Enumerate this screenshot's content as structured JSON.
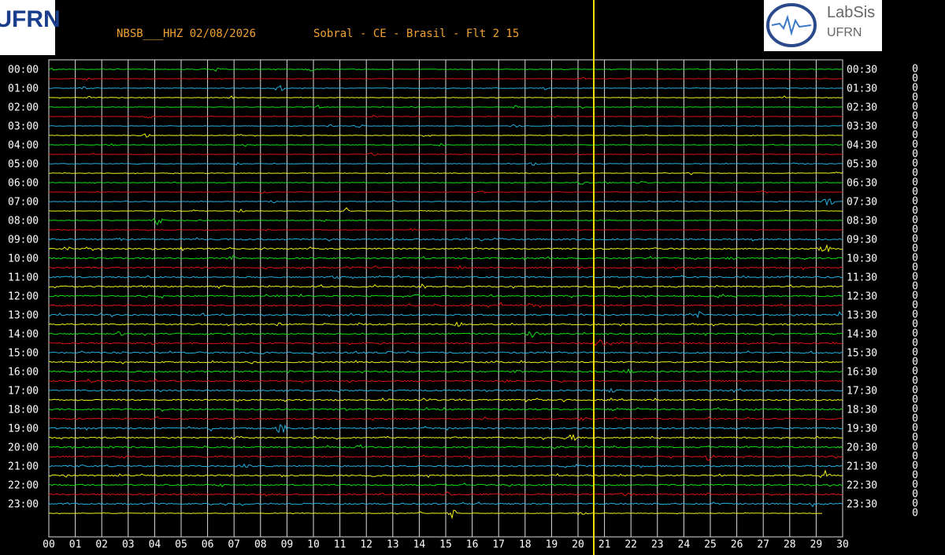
{
  "header": {
    "station": "NBSB___HHZ 02/08/2026",
    "location": "Sobral - CE - Brasil - Flt 2 15"
  },
  "logo_left": {
    "text": "UFRN"
  },
  "logo_right": {
    "title": "LabSis",
    "subtitle": "UFRN"
  },
  "left_labels": [
    "00:00",
    "01:00",
    "02:00",
    "03:00",
    "04:00",
    "05:00",
    "06:00",
    "07:00",
    "08:00",
    "09:00",
    "10:00",
    "11:00",
    "12:00",
    "13:00",
    "14:00",
    "15:00",
    "16:00",
    "17:00",
    "18:00",
    "19:00",
    "20:00",
    "21:00",
    "22:00",
    "23:00"
  ],
  "right_labels": [
    "00:30",
    "01:30",
    "02:30",
    "03:30",
    "04:30",
    "05:30",
    "06:30",
    "07:30",
    "08:30",
    "09:30",
    "10:30",
    "11:30",
    "12:30",
    "13:30",
    "14:30",
    "15:30",
    "16:30",
    "17:30",
    "18:30",
    "19:30",
    "20:30",
    "21:30",
    "22:30",
    "23:30"
  ],
  "x_labels": [
    "00",
    "01",
    "02",
    "03",
    "04",
    "05",
    "06",
    "07",
    "08",
    "09",
    "10",
    "11",
    "12",
    "13",
    "14",
    "15",
    "16",
    "17",
    "18",
    "19",
    "20",
    "21",
    "22",
    "23",
    "24",
    "25",
    "26",
    "27",
    "28",
    "29",
    "30"
  ],
  "right_column": [
    "0",
    "0",
    "0",
    "0",
    "0",
    "0",
    "0",
    "0",
    "0",
    "0",
    "0",
    "0",
    "0",
    "0",
    "0",
    "0",
    "0",
    "0",
    "0",
    "0",
    "0",
    "0",
    "0",
    "0",
    "0",
    "0",
    "0",
    "0",
    "0",
    "0",
    "0",
    "0",
    "0",
    "0",
    "0",
    "0",
    "0",
    "0",
    "0",
    "0",
    "0",
    "0",
    "0",
    "0",
    "0",
    "0",
    "0",
    "0"
  ]
}
